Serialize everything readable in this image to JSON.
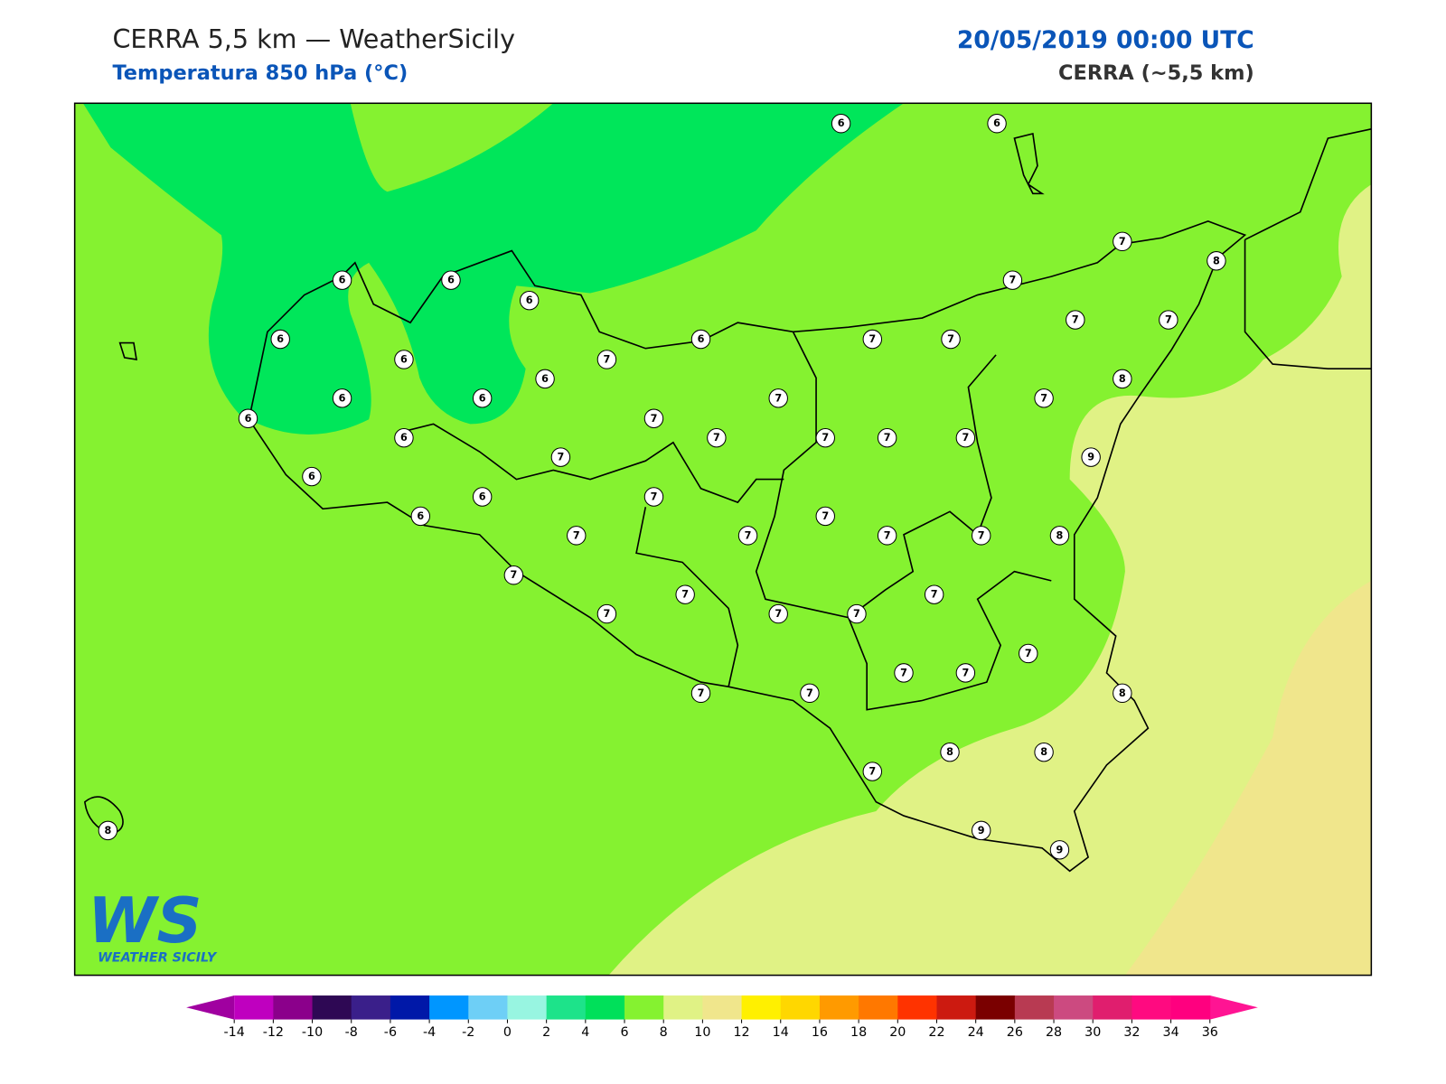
{
  "header": {
    "title": "CERRA 5,5 km — WeatherSicily",
    "subtitle": "Temperatura 850 hPa (°C)",
    "date": "20/05/2019 00:00 UTC",
    "model": "CERRA (~5,5 km)"
  },
  "stations": [
    6,
    6,
    7,
    8,
    6,
    6,
    6,
    7,
    6,
    6,
    7,
    7,
    7,
    7,
    6,
    7,
    6,
    8,
    6,
    6,
    7,
    7,
    6,
    7,
    6,
    7,
    7,
    7,
    7,
    7,
    9,
    6,
    6,
    7,
    6,
    7,
    7,
    7,
    7,
    7,
    8,
    7,
    7,
    7,
    7,
    7,
    7,
    7,
    7,
    7,
    8,
    7,
    7,
    8,
    8,
    7,
    8,
    9,
    9
  ],
  "colorbar": {
    "ticks": [
      -14,
      -12,
      -10,
      -8,
      -6,
      -4,
      -2,
      0,
      2,
      4,
      6,
      8,
      10,
      12,
      14,
      16,
      18,
      20,
      22,
      24,
      26,
      28,
      30,
      32,
      34,
      36
    ],
    "colors": [
      "#bf00bf",
      "#8b008b",
      "#2e0854",
      "#3a1f8a",
      "#0018a8",
      "#0096ff",
      "#6ecff6",
      "#98f5e1",
      "#1de38a",
      "#00e05a",
      "#85f230",
      "#e0f285",
      "#f0e68c",
      "#fff000",
      "#ffd700",
      "#ff9a00",
      "#ff7800",
      "#ff3300",
      "#cc1a10",
      "#7a0000",
      "#b83a52",
      "#cc4a80",
      "#e01e6e",
      "#ff0a80",
      "#ff007f"
    ],
    "under": "#a000a0",
    "over": "#ff1493"
  },
  "logo": {
    "mark": "WS",
    "name": "WEATHER SICILY"
  }
}
